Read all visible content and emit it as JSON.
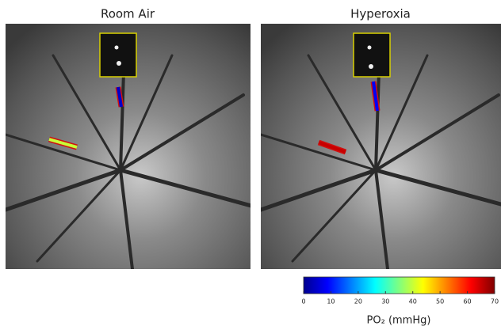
{
  "panels": [
    {
      "title": "Room Air",
      "segments": [
        {
          "value": 40
        },
        {
          "value": 5
        }
      ]
    },
    {
      "title": "Hyperoxia",
      "segments": [
        {
          "value": 65
        },
        {
          "value": 8
        }
      ]
    }
  ],
  "colorbar": {
    "label": "PO₂ (mmHg)",
    "lim": [
      0,
      70
    ],
    "ticks": [
      0,
      10,
      20,
      30,
      40,
      50,
      60,
      70
    ]
  }
}
